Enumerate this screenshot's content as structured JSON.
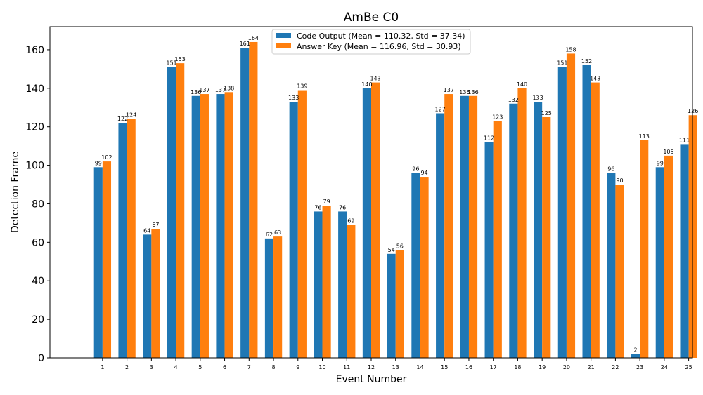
{
  "chart_data": {
    "type": "bar",
    "title": "AmBe C0",
    "xlabel": "Event Number",
    "ylabel": "Detection Frame",
    "ylim": [
      0,
      172
    ],
    "yticks": [
      0,
      20,
      40,
      60,
      80,
      100,
      120,
      140,
      160
    ],
    "categories": [
      "1",
      "2",
      "3",
      "4",
      "5",
      "6",
      "7",
      "8",
      "9",
      "10",
      "11",
      "12",
      "13",
      "14",
      "15",
      "16",
      "17",
      "18",
      "19",
      "20",
      "21",
      "22",
      "23",
      "24",
      "25"
    ],
    "series": [
      {
        "name": "Code Output (Mean = 110.32, Std = 37.34)",
        "color": "#1f77b4",
        "values": [
          99,
          122,
          64,
          151,
          136,
          137,
          161,
          62,
          133,
          76,
          76,
          140,
          54,
          96,
          127,
          136,
          112,
          132,
          133,
          151,
          152,
          96,
          2,
          99,
          111
        ]
      },
      {
        "name": "Answer Key (Mean = 116.96, Std = 30.93)",
        "color": "#ff7f0e",
        "values": [
          102,
          124,
          67,
          153,
          137,
          138,
          164,
          63,
          139,
          79,
          69,
          143,
          56,
          94,
          137,
          136,
          123,
          140,
          125,
          158,
          143,
          90,
          113,
          105,
          126
        ]
      }
    ],
    "legend": "top-center",
    "grid": false
  }
}
